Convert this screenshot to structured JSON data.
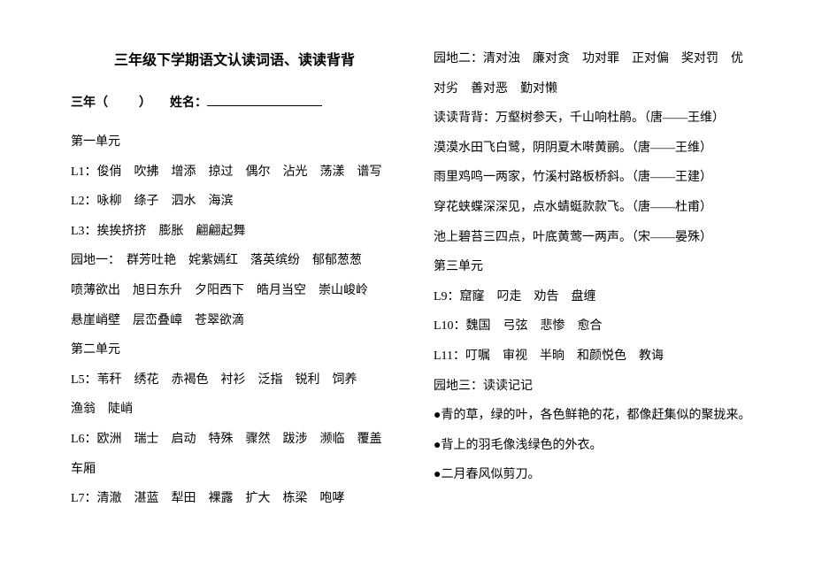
{
  "title": "三年级下学期语文认读词语、读读背背",
  "nameRow": {
    "prefix": "三年（",
    "mid": "）",
    "label": "姓名："
  },
  "leftLines": [
    "第一单元",
    "L1：俊俏　吹拂　增添　掠过　偶尔　沾光　荡漾　谱写",
    "L2：咏柳　绦子　泗水　海滨",
    "L3：挨挨挤挤　膨胀　翩翩起舞",
    "园地一：　群芳吐艳　姹紫嫣红　落英缤纷　郁郁葱葱",
    "喷薄欲出　旭日东升　夕阳西下　皓月当空　崇山峻岭",
    "悬崖峭壁　层峦叠嶂　苍翠欲滴",
    "第二单元",
    "L5：苇秆　绣花　赤褐色　衬衫　泛指　锐利　饲养",
    "渔翁　陡峭",
    "L6：欧洲　瑞士　启动　特殊　骤然　跋涉　濒临　覆盖",
    "车厢",
    "L7：清澈　湛蓝　犁田　裸露　扩大　栋梁　咆哮"
  ],
  "rightLines": [
    "园地二：清对浊　廉对贪　功对罪　正对偏　奖对罚　优",
    "对劣　善对恶　勤对懒",
    "读读背背：万壑树参天，千山响杜鹃。（唐——王维）",
    "漠漠水田飞白鹭，阴阴夏木啭黄鹂。（唐——王维）",
    "雨里鸡鸣一两家，竹溪村路板桥斜。（唐——王建）",
    "穿花蛱蝶深深见，点水蜻蜓款款飞。（唐——杜甫）",
    "池上碧苔三四点，叶底黄莺一两声。（宋——晏殊）",
    "第三单元",
    "L9：窟窿　叼走　劝告　盘缠",
    "L10：魏国　弓弦　悲惨　愈合",
    "L11：叮嘱　审视　半晌　和颜悦色　教诲",
    "园地三：读读记记",
    "●青的草，绿的叶，各色鲜艳的花，都像赶集似的聚拢来。",
    "●背上的羽毛像浅绿色的外衣。",
    "●二月春风似剪刀。"
  ]
}
